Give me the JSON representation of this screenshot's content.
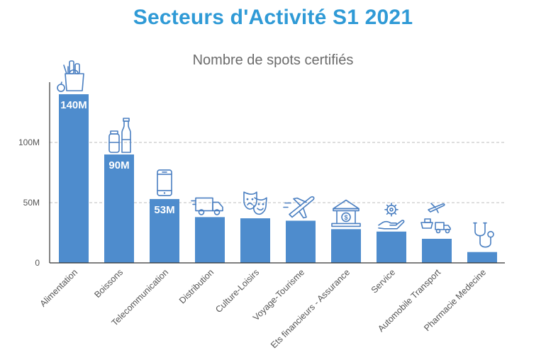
{
  "title": "Secteurs d'Activité S1 2021",
  "subtitle": "Nombre de spots certifiés",
  "colors": {
    "bar": "#4e8ccd",
    "title": "#2f9ad6",
    "icon": "#4a7fc1",
    "grid": "#bdbdbd",
    "axis": "#333333",
    "text": "#555555"
  },
  "chart_data": {
    "type": "bar",
    "title": "Secteurs d'Activité S1 2021",
    "subtitle": "Nombre de spots certifiés",
    "xlabel": "",
    "ylabel": "",
    "ylim": [
      0,
      150
    ],
    "yticks": [
      0,
      50,
      100
    ],
    "ytick_labels": [
      "0",
      "50M",
      "100M"
    ],
    "grid": "horizontal dashed",
    "categories": [
      "Alimentation",
      "Boissons",
      "Telecommunication",
      "Distribution",
      "Culture-Loisirs",
      "Voyage-Tourisme",
      "Ets financieurs - Assurance",
      "Service",
      "Automobile Transport",
      "Pharmacie Medecine"
    ],
    "values": [
      140,
      90,
      53,
      38,
      37,
      35,
      28,
      26,
      20,
      9
    ],
    "data_labels": [
      "140M",
      "90M",
      "53M",
      "",
      "",
      "",
      "",
      "",
      "",
      ""
    ],
    "icons": [
      "grocery-bag-icon",
      "bottles-icon",
      "smartphone-icon",
      "delivery-truck-icon",
      "theater-masks-icon",
      "airplane-icon",
      "bank-icon",
      "hand-gear-icon",
      "transport-icon",
      "stethoscope-icon"
    ]
  }
}
